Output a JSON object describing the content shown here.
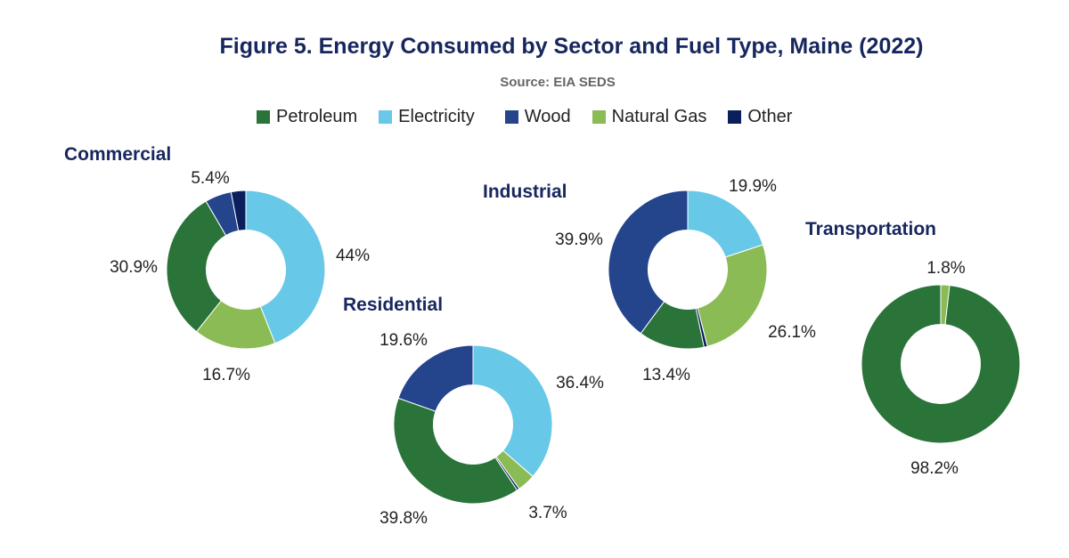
{
  "title": "Figure 5. Energy Consumed by Sector and Fuel Type, Maine (2022)",
  "subtitle": "Source: EIA SEDS",
  "colors": {
    "Petroleum": "#2a7339",
    "Electricity": "#67c8e7",
    "Wood": "#24448c",
    "Natural Gas": "#8bbb55",
    "Other": "#0b1f5c"
  },
  "chart_data": {
    "type": "pie",
    "legend": [
      "Petroleum",
      "Electricity",
      "Wood",
      "Natural Gas",
      "Other"
    ],
    "legend_position": "top",
    "charts": [
      {
        "sector": "Commercial",
        "slices": [
          {
            "fuel": "Electricity",
            "value": 44,
            "label": "44%"
          },
          {
            "fuel": "Natural Gas",
            "value": 16.7,
            "label": "16.7%"
          },
          {
            "fuel": "Petroleum",
            "value": 30.9,
            "label": "30.9%"
          },
          {
            "fuel": "Wood",
            "value": 5.4,
            "label": "5.4%"
          },
          {
            "fuel": "Other",
            "value": 3.0,
            "label": ""
          }
        ]
      },
      {
        "sector": "Residential",
        "slices": [
          {
            "fuel": "Electricity",
            "value": 36.4,
            "label": "36.4%"
          },
          {
            "fuel": "Natural Gas",
            "value": 3.7,
            "label": "3.7%"
          },
          {
            "fuel": "Other",
            "value": 0.5,
            "label": ""
          },
          {
            "fuel": "Petroleum",
            "value": 39.8,
            "label": "39.8%"
          },
          {
            "fuel": "Wood",
            "value": 19.6,
            "label": "19.6%"
          }
        ]
      },
      {
        "sector": "Industrial",
        "slices": [
          {
            "fuel": "Electricity",
            "value": 19.9,
            "label": "19.9%"
          },
          {
            "fuel": "Natural Gas",
            "value": 26.1,
            "label": "26.1%"
          },
          {
            "fuel": "Other",
            "value": 0.7,
            "label": ""
          },
          {
            "fuel": "Petroleum",
            "value": 13.4,
            "label": "13.4%"
          },
          {
            "fuel": "Wood",
            "value": 39.9,
            "label": "39.9%"
          }
        ]
      },
      {
        "sector": "Transportation",
        "slices": [
          {
            "fuel": "Natural Gas",
            "value": 1.8,
            "label": "1.8%"
          },
          {
            "fuel": "Petroleum",
            "value": 98.2,
            "label": "98.2%"
          }
        ]
      }
    ]
  }
}
